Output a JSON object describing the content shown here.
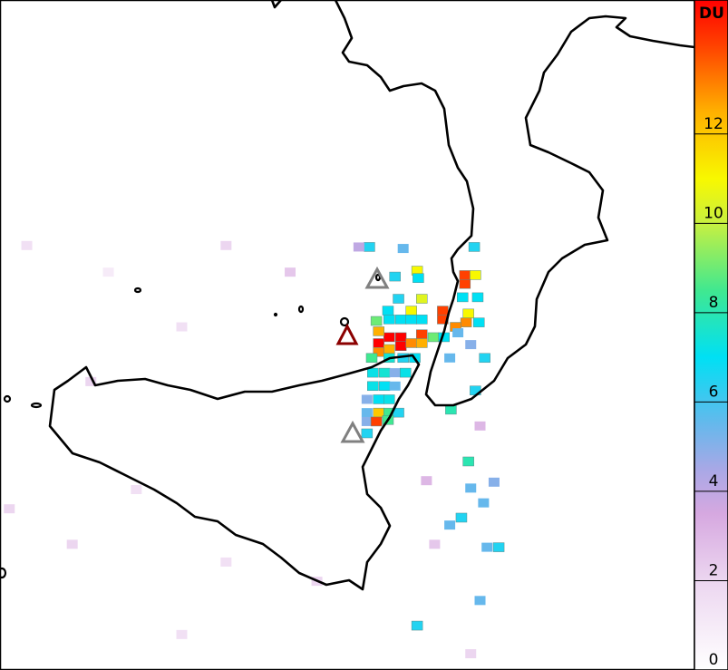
{
  "colorbar": {
    "label": "DU",
    "range": [
      0,
      15
    ],
    "ticks": [
      0,
      2,
      4,
      6,
      8,
      10,
      12
    ],
    "colormap": [
      [
        0,
        "#ffffff"
      ],
      [
        2,
        "#ecd6f0"
      ],
      [
        3.5,
        "#d6a8e0"
      ],
      [
        4.5,
        "#a8a8e6"
      ],
      [
        5.5,
        "#66b8ec"
      ],
      [
        7,
        "#00e0f4"
      ],
      [
        8.5,
        "#40e890"
      ],
      [
        10,
        "#c8f040"
      ],
      [
        11,
        "#f8f800"
      ],
      [
        12.5,
        "#ffb000"
      ],
      [
        14,
        "#ff4000"
      ],
      [
        15,
        "#ff0000"
      ]
    ]
  },
  "map": {
    "lon_range": [
      11.97,
      17.93
    ],
    "lat_range": [
      36.15,
      40.68
    ],
    "cells": {
      "lon": [
        15.96,
        16.05,
        15.96,
        16.07,
        15.94,
        15.77,
        15.77,
        15.99,
        15.97,
        15.88,
        16.08,
        15.31,
        15.41,
        15.22,
        15.41,
        15.31,
        15.22,
        15.59,
        15.5,
        15.59,
        15.69,
        15.78,
        15.22,
        15.5,
        15.59,
        15.55,
        15.56,
        15.41,
        15.31,
        15.5,
        15.59,
        15.2,
        15.3,
        15.16,
        15.31,
        15.43,
        15.53,
        15.17,
        15.27,
        15.36,
        15.45,
        15.17,
        15.27,
        15.36,
        15.12,
        15.22,
        15.31,
        15.12,
        15.22,
        15.31,
        15.39,
        15.12,
        15.2,
        15.3,
        15.12,
        15.14,
        15.05,
        15.43,
        16.04,
        15.36,
        15.39,
        15.9,
        16.01,
        16.13,
        15.83,
        16.05,
        15.84,
        15.99,
        16.01,
        15.93,
        15.83,
        16.15,
        16.25,
        15.55,
        16.09,
        16.21,
        16.12,
        12.2,
        12.9,
        13.91,
        14.46,
        13.53,
        12.75,
        13.14,
        12.59,
        13.91,
        14.69,
        15.7,
        16.09,
        12.05,
        13.53,
        16.01,
        15.63
      ],
      "lat": [
        38.82,
        38.82,
        38.76,
        38.67,
        38.67,
        38.58,
        38.52,
        38.56,
        38.5,
        38.47,
        38.5,
        38.4,
        38.4,
        38.36,
        38.34,
        38.32,
        38.3,
        38.42,
        38.36,
        38.36,
        38.4,
        38.4,
        38.44,
        38.58,
        38.66,
        38.85,
        38.8,
        38.52,
        38.52,
        38.52,
        38.52,
        38.51,
        38.58,
        38.26,
        38.26,
        38.26,
        38.26,
        38.16,
        38.16,
        38.16,
        38.16,
        38.07,
        38.07,
        38.07,
        37.98,
        37.98,
        37.98,
        37.89,
        37.89,
        37.89,
        37.89,
        37.83,
        37.83,
        37.84,
        37.75,
        39.01,
        39.01,
        39.0,
        39.01,
        38.81,
        38.66,
        38.43,
        38.35,
        38.26,
        38.26,
        38.04,
        37.91,
        37.56,
        37.38,
        37.18,
        37.13,
        36.98,
        36.98,
        36.45,
        36.62,
        37.42,
        37.28,
        39.02,
        38.84,
        39.02,
        38.84,
        38.47,
        38.1,
        37.37,
        37.0,
        36.88,
        36.75,
        37.0,
        37.8,
        37.24,
        36.39,
        36.26,
        37.43
      ],
      "du": [
        14,
        11,
        14,
        7,
        7,
        14,
        14,
        11,
        13,
        13,
        7,
        15,
        15,
        15,
        15,
        12.5,
        13,
        14,
        13,
        12.5,
        9,
        7,
        12.5,
        11,
        10.5,
        11,
        7,
        7,
        7,
        7,
        7,
        9,
        7,
        8.5,
        7.5,
        6.5,
        7,
        7.2,
        7.5,
        5,
        7.2,
        7.2,
        7,
        5.5,
        5,
        7,
        7.2,
        5.5,
        12,
        8.5,
        6.5,
        5,
        14,
        8.5,
        6.5,
        6.5,
        4,
        5.5,
        6.5,
        6.5,
        6.5,
        5.5,
        5,
        6.5,
        5.5,
        6.5,
        8,
        8,
        5.5,
        6.5,
        5.5,
        5.5,
        6.5,
        6.5,
        5.5,
        5,
        5.5,
        1.5,
        1,
        2,
        2.5,
        1.5,
        2,
        1.5,
        2,
        1.5,
        2,
        2.5,
        3,
        2,
        1.5,
        2,
        3
      ]
    }
  }
}
